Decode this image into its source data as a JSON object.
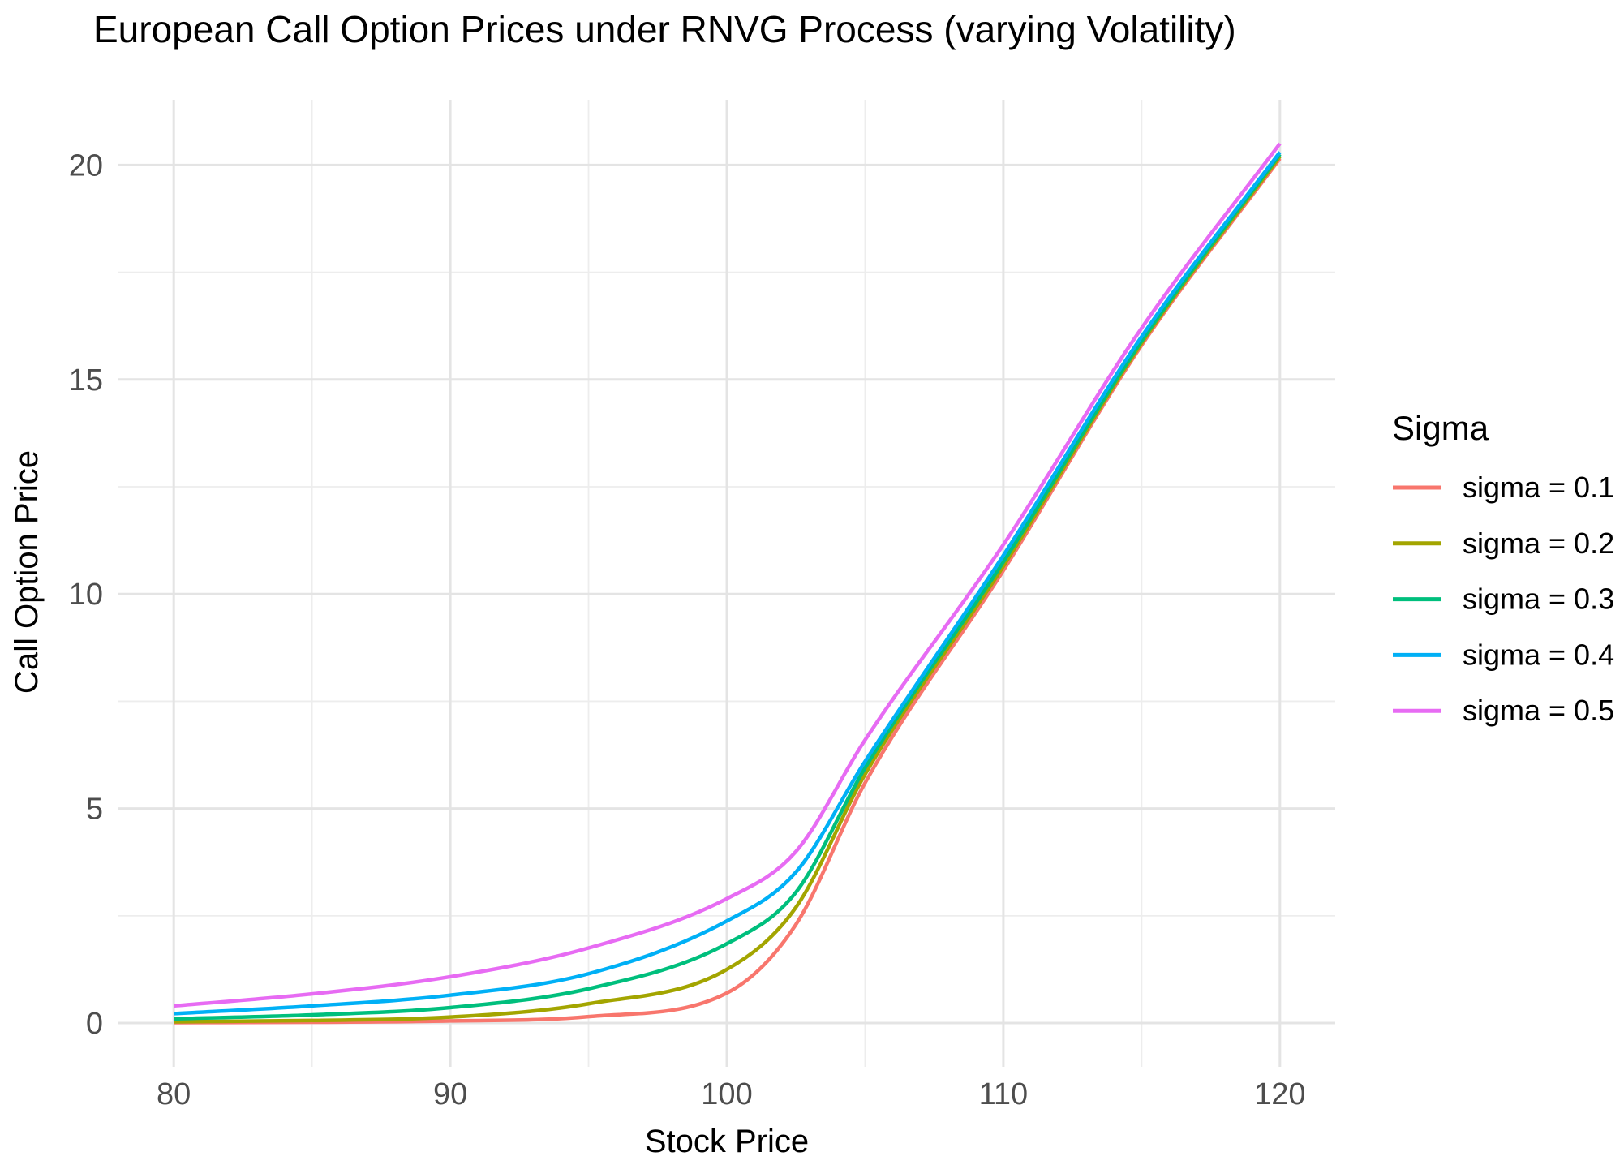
{
  "chart_data": {
    "type": "line",
    "title": "European Call Option Prices under RNVG Process (varying Volatility)",
    "xlabel": "Stock Price",
    "ylabel": "Call Option Price",
    "legend_title": "Sigma",
    "legend_position": "right",
    "grid": true,
    "background": "#ffffff",
    "x_ticks": [
      80,
      90,
      100,
      110,
      120
    ],
    "x_minor_ticks": [
      85,
      95,
      105,
      115
    ],
    "y_ticks": [
      0,
      5,
      10,
      15,
      20
    ],
    "y_minor_ticks": [
      2.5,
      7.5,
      12.5,
      17.5
    ],
    "xlim": [
      78,
      122
    ],
    "ylim": [
      -1.02,
      21.52
    ],
    "x": [
      80,
      85,
      90,
      95,
      100,
      102.5,
      105,
      110,
      115,
      120
    ],
    "series": [
      {
        "name": "sigma = 0.1",
        "color": "#F8766D",
        "values": [
          0.01,
          0.02,
          0.05,
          0.15,
          0.7,
          2.3,
          5.6,
          10.55,
          15.8,
          20.15
        ]
      },
      {
        "name": "sigma = 0.2",
        "color": "#A3A500",
        "values": [
          0.03,
          0.06,
          0.14,
          0.45,
          1.25,
          2.7,
          5.8,
          10.65,
          15.85,
          20.2
        ]
      },
      {
        "name": "sigma = 0.3",
        "color": "#00BF7D",
        "values": [
          0.1,
          0.19,
          0.36,
          0.8,
          1.85,
          3.05,
          5.95,
          10.75,
          15.9,
          20.25
        ]
      },
      {
        "name": "sigma = 0.4",
        "color": "#00B0F6",
        "values": [
          0.22,
          0.4,
          0.65,
          1.15,
          2.38,
          3.52,
          6.1,
          10.9,
          16.0,
          20.3
        ]
      },
      {
        "name": "sigma = 0.5",
        "color": "#E76BF3",
        "values": [
          0.4,
          0.68,
          1.08,
          1.75,
          2.9,
          4.0,
          6.6,
          11.15,
          16.2,
          20.5
        ]
      }
    ]
  }
}
